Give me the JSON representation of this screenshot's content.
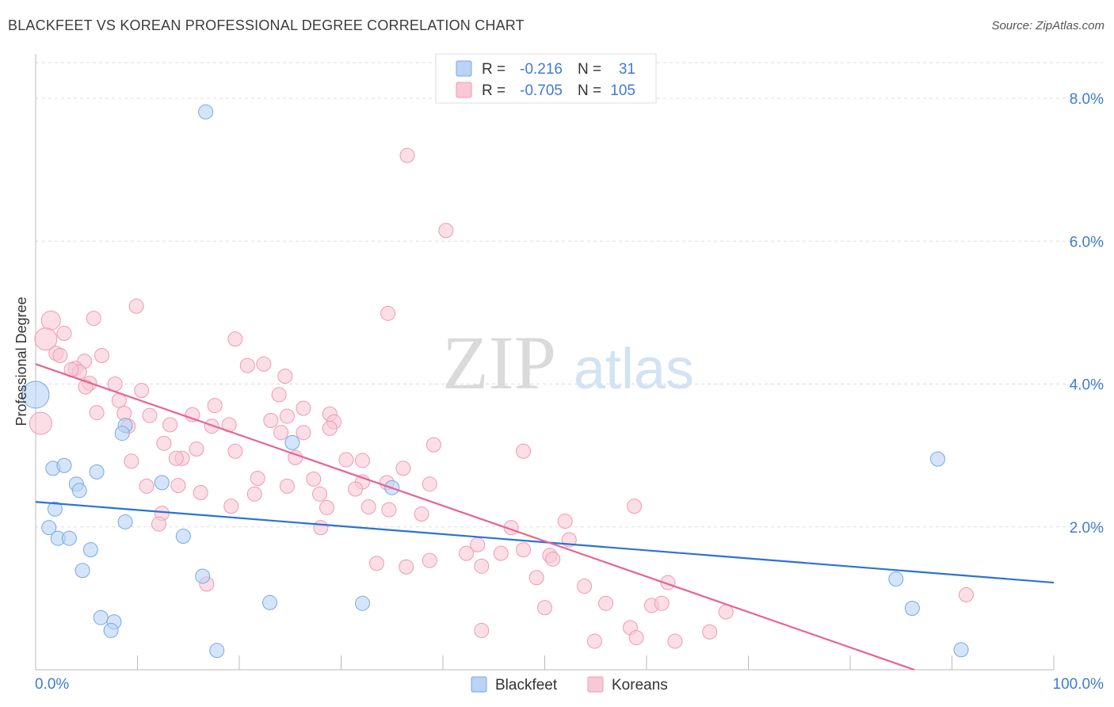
{
  "title": "BLACKFEET VS KOREAN PROFESSIONAL DEGREE CORRELATION CHART",
  "source": "Source: ZipAtlas.com",
  "watermark": {
    "zip": "ZIP",
    "atlas": "atlas"
  },
  "legend_stats": [
    {
      "r_label": "R =",
      "r_value": "-0.216",
      "n_label": "N =",
      "n_value": "31"
    },
    {
      "r_label": "R =",
      "r_value": "-0.705",
      "n_label": "N =",
      "n_value": "105"
    }
  ],
  "colors": {
    "blackfeet_fill": "#b8d3f5",
    "blackfeet_stroke": "#7aa7e0",
    "blackfeet_line": "#2b72d4",
    "koreans_fill": "#f9c8d6",
    "koreans_stroke": "#ee9ab4",
    "koreans_line": "#e8638f",
    "axis_text": "#3f7bd4",
    "grid": "#dddddd"
  },
  "chart_data": {
    "type": "scatter",
    "title": "BLACKFEET VS KOREAN PROFESSIONAL DEGREE CORRELATION CHART",
    "xlabel": "",
    "ylabel": "Professional Degree",
    "xlim": [
      0,
      100
    ],
    "ylim": [
      0,
      8.5
    ],
    "x_tick_labels": [
      "0.0%",
      "100.0%"
    ],
    "y_ticks": [
      2,
      4,
      6,
      8
    ],
    "y_tick_labels": [
      "2.0%",
      "4.0%",
      "6.0%",
      "8.0%"
    ],
    "grid": true,
    "legend_position": "bottom",
    "series": [
      {
        "name": "Blackfeet",
        "trend": [
          [
            0,
            2.35
          ],
          [
            100,
            1.22
          ]
        ],
        "points": [
          [
            16.7,
            7.81
          ],
          [
            0,
            3.85
          ],
          [
            8.8,
            3.42
          ],
          [
            8.5,
            3.31
          ],
          [
            25.2,
            3.18
          ],
          [
            1.7,
            2.82
          ],
          [
            2.8,
            2.86
          ],
          [
            6.0,
            2.77
          ],
          [
            4.0,
            2.6
          ],
          [
            4.3,
            2.51
          ],
          [
            12.4,
            2.62
          ],
          [
            35.0,
            2.55
          ],
          [
            1.9,
            2.25
          ],
          [
            8.8,
            2.07
          ],
          [
            1.3,
            1.99
          ],
          [
            2.2,
            1.84
          ],
          [
            3.3,
            1.84
          ],
          [
            14.5,
            1.87
          ],
          [
            5.4,
            1.68
          ],
          [
            4.6,
            1.39
          ],
          [
            16.4,
            1.31
          ],
          [
            6.4,
            0.73
          ],
          [
            7.7,
            0.67
          ],
          [
            7.4,
            0.55
          ],
          [
            23.0,
            0.94
          ],
          [
            32.1,
            0.93
          ],
          [
            84.5,
            1.27
          ],
          [
            86.1,
            0.86
          ],
          [
            17.8,
            0.27
          ],
          [
            90.9,
            0.28
          ],
          [
            88.6,
            2.95
          ]
        ],
        "sizes": [
          18,
          34,
          18,
          18,
          18,
          18,
          18,
          18,
          18,
          18,
          18,
          18,
          18,
          18,
          18,
          18,
          18,
          18,
          18,
          18,
          18,
          18,
          18,
          18,
          18,
          18,
          18,
          18,
          18,
          18,
          18
        ]
      },
      {
        "name": "Koreans",
        "trend": [
          [
            0,
            4.28
          ],
          [
            86.3,
            0
          ]
        ],
        "points": [
          [
            36.5,
            7.2
          ],
          [
            40.3,
            6.15
          ],
          [
            9.9,
            5.09
          ],
          [
            34.6,
            4.99
          ],
          [
            1.5,
            4.89
          ],
          [
            5.7,
            4.92
          ],
          [
            1.0,
            4.63
          ],
          [
            2.8,
            4.71
          ],
          [
            19.6,
            4.63
          ],
          [
            2.0,
            4.43
          ],
          [
            6.5,
            4.4
          ],
          [
            2.4,
            4.4
          ],
          [
            4.8,
            4.32
          ],
          [
            3.9,
            4.22
          ],
          [
            4.3,
            4.17
          ],
          [
            20.8,
            4.26
          ],
          [
            22.4,
            4.28
          ],
          [
            24.5,
            4.11
          ],
          [
            5.3,
            4.01
          ],
          [
            7.8,
            4.0
          ],
          [
            4.9,
            3.96
          ],
          [
            10.4,
            3.91
          ],
          [
            23.9,
            3.85
          ],
          [
            8.2,
            3.77
          ],
          [
            17.6,
            3.7
          ],
          [
            26.3,
            3.66
          ],
          [
            8.7,
            3.59
          ],
          [
            11.2,
            3.56
          ],
          [
            15.4,
            3.57
          ],
          [
            28.9,
            3.58
          ],
          [
            24.7,
            3.55
          ],
          [
            23.1,
            3.49
          ],
          [
            29.3,
            3.47
          ],
          [
            13.2,
            3.43
          ],
          [
            17.3,
            3.41
          ],
          [
            19.0,
            3.43
          ],
          [
            9.1,
            3.41
          ],
          [
            26.3,
            3.32
          ],
          [
            28.9,
            3.38
          ],
          [
            24.1,
            3.32
          ],
          [
            12.6,
            3.17
          ],
          [
            15.8,
            3.09
          ],
          [
            19.6,
            3.06
          ],
          [
            39.1,
            3.15
          ],
          [
            14.4,
            2.96
          ],
          [
            13.8,
            2.96
          ],
          [
            25.5,
            2.97
          ],
          [
            9.4,
            2.92
          ],
          [
            30.5,
            2.94
          ],
          [
            32.1,
            2.93
          ],
          [
            47.9,
            3.06
          ],
          [
            36.1,
            2.82
          ],
          [
            21.8,
            2.68
          ],
          [
            27.3,
            2.67
          ],
          [
            32.1,
            2.63
          ],
          [
            34.5,
            2.62
          ],
          [
            10.9,
            2.57
          ],
          [
            14.0,
            2.58
          ],
          [
            24.7,
            2.57
          ],
          [
            38.7,
            2.6
          ],
          [
            16.2,
            2.48
          ],
          [
            21.5,
            2.46
          ],
          [
            27.9,
            2.46
          ],
          [
            31.4,
            2.53
          ],
          [
            19.2,
            2.29
          ],
          [
            28.6,
            2.27
          ],
          [
            32.7,
            2.28
          ],
          [
            34.7,
            2.24
          ],
          [
            37.9,
            2.18
          ],
          [
            58.8,
            2.29
          ],
          [
            12.4,
            2.19
          ],
          [
            12.1,
            2.04
          ],
          [
            28.0,
            1.99
          ],
          [
            46.7,
            1.99
          ],
          [
            52.0,
            2.08
          ],
          [
            52.4,
            1.82
          ],
          [
            42.3,
            1.63
          ],
          [
            43.4,
            1.75
          ],
          [
            45.7,
            1.63
          ],
          [
            47.9,
            1.68
          ],
          [
            50.5,
            1.6
          ],
          [
            50.8,
            1.55
          ],
          [
            33.5,
            1.49
          ],
          [
            36.4,
            1.44
          ],
          [
            38.7,
            1.53
          ],
          [
            43.8,
            1.45
          ],
          [
            49.2,
            1.29
          ],
          [
            53.9,
            1.17
          ],
          [
            62.1,
            1.22
          ],
          [
            16.8,
            1.2
          ],
          [
            50.0,
            0.87
          ],
          [
            56.0,
            0.93
          ],
          [
            60.5,
            0.9
          ],
          [
            61.5,
            0.93
          ],
          [
            67.8,
            0.81
          ],
          [
            91.4,
            1.05
          ],
          [
            43.8,
            0.55
          ],
          [
            54.9,
            0.4
          ],
          [
            58.4,
            0.59
          ],
          [
            59.0,
            0.45
          ],
          [
            62.8,
            0.4
          ],
          [
            66.2,
            0.53
          ],
          [
            0.5,
            3.45
          ],
          [
            3.5,
            4.2
          ],
          [
            6.0,
            3.6
          ]
        ],
        "sizes": [
          18,
          18,
          18,
          18,
          24,
          18,
          28,
          18,
          18,
          18,
          18,
          18,
          18,
          18,
          18,
          18,
          18,
          18,
          18,
          18,
          18,
          18,
          18,
          18,
          18,
          18,
          18,
          18,
          18,
          18,
          18,
          18,
          18,
          18,
          18,
          18,
          18,
          18,
          18,
          18,
          18,
          18,
          18,
          18,
          18,
          18,
          18,
          18,
          18,
          18,
          18,
          18,
          18,
          18,
          18,
          18,
          18,
          18,
          18,
          18,
          18,
          18,
          18,
          18,
          18,
          18,
          18,
          18,
          18,
          18,
          18,
          18,
          18,
          18,
          18,
          18,
          18,
          18,
          18,
          18,
          18,
          18,
          18,
          18,
          18,
          18,
          18,
          18,
          18,
          18,
          18,
          18,
          18,
          18,
          18,
          18,
          18,
          18,
          18,
          18,
          18,
          18,
          28,
          18,
          18
        ]
      }
    ]
  }
}
